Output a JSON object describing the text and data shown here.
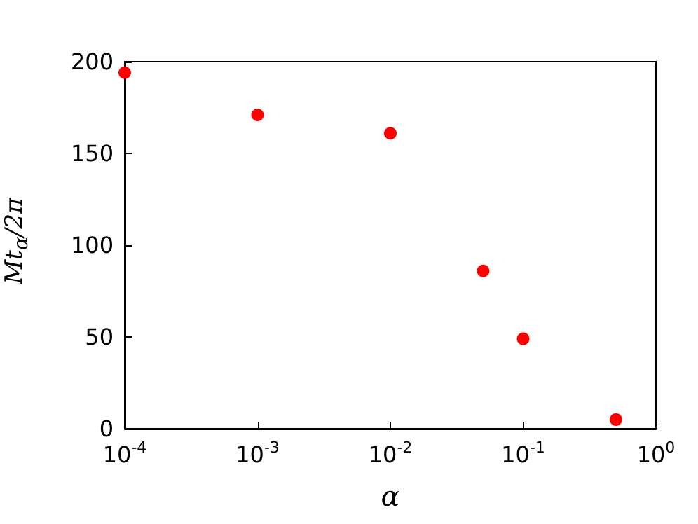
{
  "chart_data": {
    "type": "scatter",
    "xlabel": "α",
    "ylabel": "Mt$_{α}$/2π",
    "x": [
      0.0001,
      0.001,
      0.01,
      0.05,
      0.1,
      0.5
    ],
    "series": [
      {
        "color": "#ff0000",
        "values": [
          194,
          171,
          161,
          86,
          49,
          5
        ]
      }
    ],
    "log": "x",
    "xlim": [
      0.0001,
      1
    ],
    "ylim": [
      0,
      200
    ],
    "xticks": [
      {
        "value": 0.0001,
        "label": "10$^{-4}$"
      },
      {
        "value": 0.001,
        "label": "10$^{-3}$"
      },
      {
        "value": 0.01,
        "label": "10$^{-2}$"
      },
      {
        "value": 0.1,
        "label": "10$^{-1}$"
      },
      {
        "value": 1,
        "label": "10$^{0}$"
      }
    ],
    "yticks": [
      0,
      50,
      100,
      150,
      200
    ],
    "grid": false,
    "marker": "circle"
  }
}
